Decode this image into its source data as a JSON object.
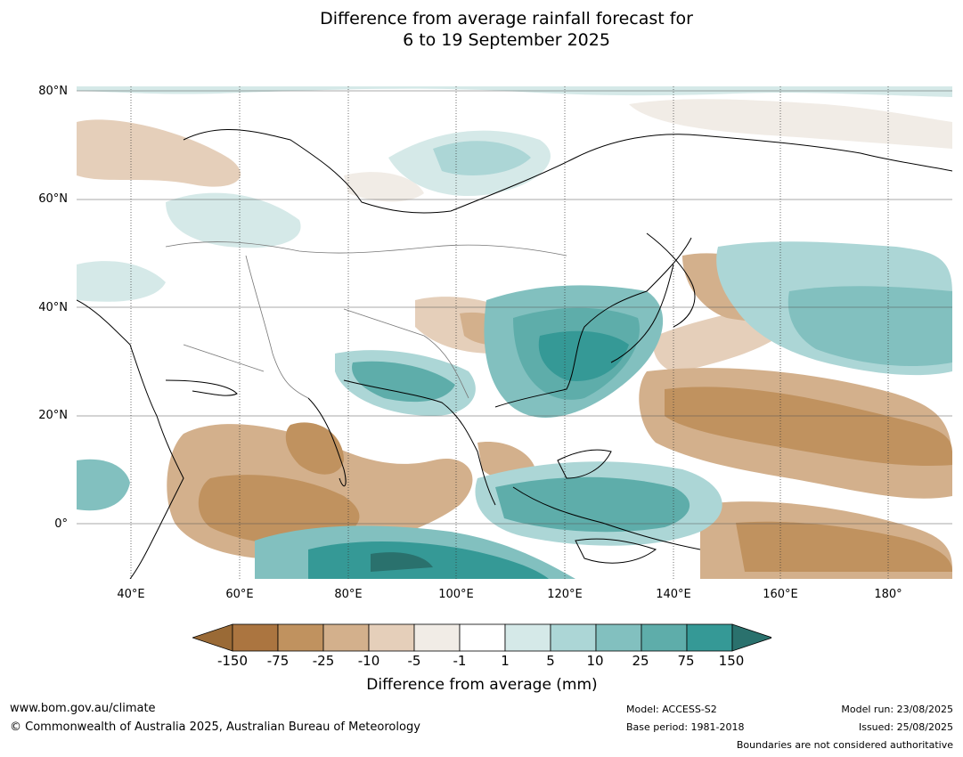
{
  "title_line1": "Difference from average rainfall forecast for",
  "title_line2": "6 to 19 September 2025",
  "map": {
    "lat_labels": [
      "80°N",
      "60°N",
      "40°N",
      "20°N",
      "0°"
    ],
    "lon_labels": [
      "40°E",
      "60°E",
      "80°E",
      "100°E",
      "120°E",
      "140°E",
      "160°E",
      "180°"
    ],
    "extent": {
      "lon_min": 30,
      "lon_max": 192,
      "lat_min": -10,
      "lat_max": 80
    }
  },
  "colorbar": {
    "ticks": [
      "-150",
      "-75",
      "-25",
      "-10",
      "-5",
      "-1",
      "1",
      "5",
      "10",
      "25",
      "75",
      "150"
    ],
    "colors": [
      "#9a6a36",
      "#ab7540",
      "#c0925f",
      "#d3b08c",
      "#e5cfba",
      "#f1ece6",
      "#ffffff",
      "#d5e9e8",
      "#acd6d6",
      "#82c0bf",
      "#5eadaa",
      "#359996",
      "#2a716d"
    ],
    "label": "Difference from average (mm)"
  },
  "footer": {
    "url": "www.bom.gov.au/climate",
    "copyright": "© Commonwealth of Australia 2025, Australian Bureau of Meteorology",
    "model": "Model: ACCESS-S2",
    "base_period": "Base period: 1981-2018",
    "model_run": "Model run: 23/08/2025",
    "issued": "Issued: 25/08/2025",
    "disclaimer": "Boundaries are not considered authoritative"
  }
}
